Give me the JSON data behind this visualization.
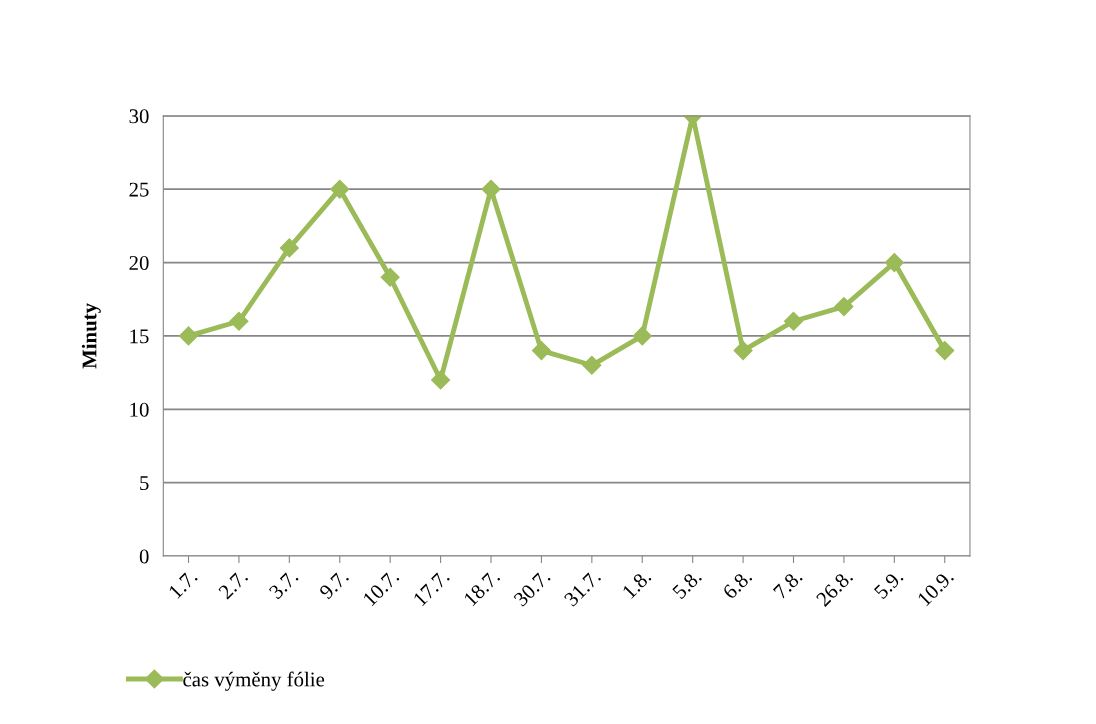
{
  "chart_data": {
    "type": "line",
    "ylabel": "Minuty",
    "categories": [
      "1.7.",
      "2.7.",
      "3.7.",
      "9.7.",
      "10.7.",
      "17.7.",
      "18.7.",
      "30.7.",
      "31.7.",
      "1.8.",
      "5.8.",
      "6.8.",
      "7.8.",
      "26.8.",
      "5.9.",
      "10.9."
    ],
    "series": [
      {
        "name": "čas výměny fólie",
        "color": "#9bbb59",
        "values": [
          15,
          16,
          21,
          25,
          19,
          12,
          25,
          14,
          13,
          15,
          30,
          14,
          16,
          17,
          20,
          14
        ]
      }
    ],
    "ylim": [
      0,
      30
    ],
    "yticks": [
      0,
      5,
      10,
      15,
      20,
      25,
      30
    ],
    "grid": "y",
    "legend": "bottom left",
    "marker": "diamond",
    "line_style": "solid"
  }
}
